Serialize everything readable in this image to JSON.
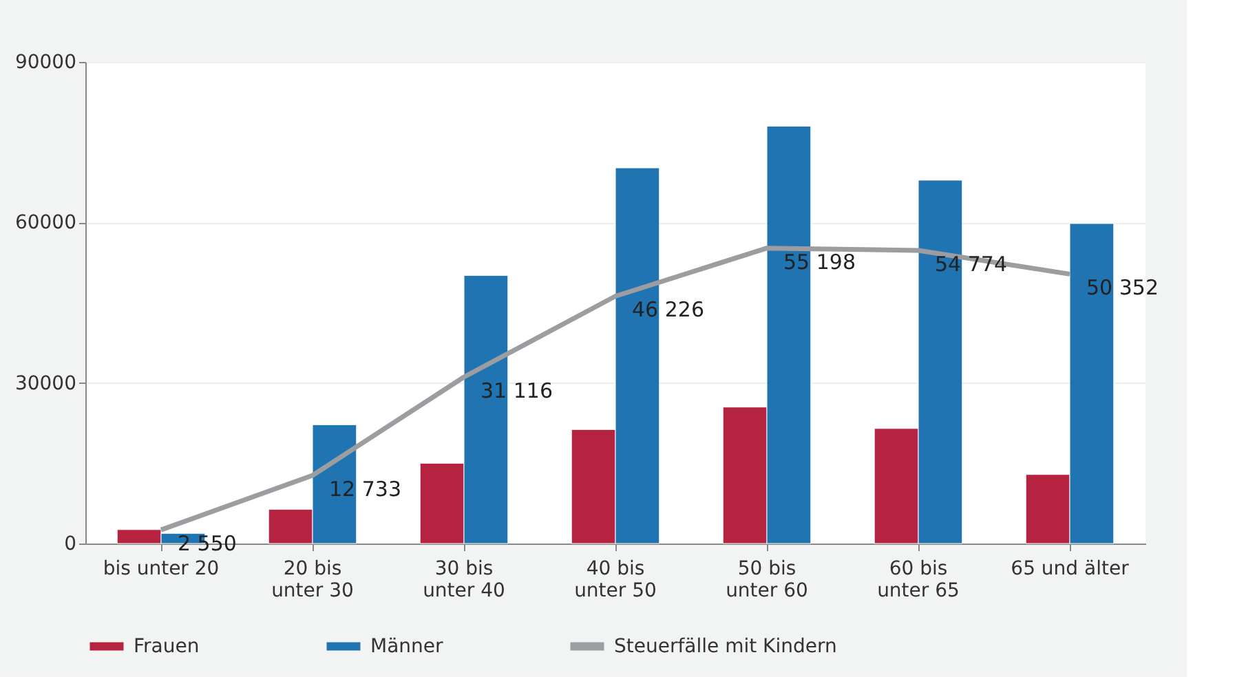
{
  "chart_data": {
    "type": "bar",
    "categories": [
      "bis unter 20",
      "20 bis\nunter 30",
      "30 bis\nunter 40",
      "40 bis\nunter 50",
      "50 bis\nunter 60",
      "60 bis\nunter 65",
      "65 und älter"
    ],
    "series": [
      {
        "name": "Frauen",
        "color": "#b52340",
        "values": [
          2600,
          6400,
          15000,
          21300,
          25500,
          21500,
          12900
        ]
      },
      {
        "name": "Männer",
        "color": "#1f74b1",
        "values": [
          1900,
          22200,
          50100,
          70200,
          78000,
          67900,
          59800
        ]
      },
      {
        "name": "Steuerfälle mit Kindern",
        "type": "line",
        "color": "#9b9da0",
        "values": [
          2550,
          12733,
          31116,
          46226,
          55198,
          54774,
          50352
        ],
        "value_labels": [
          "2 550",
          "12 733",
          "31 116",
          "46 226",
          "55 198",
          "54 774",
          "50 352"
        ]
      }
    ],
    "ylim": [
      0,
      90000
    ],
    "yticks": [
      0,
      30000,
      60000,
      90000
    ],
    "grid": "y",
    "legend": "bottom"
  }
}
